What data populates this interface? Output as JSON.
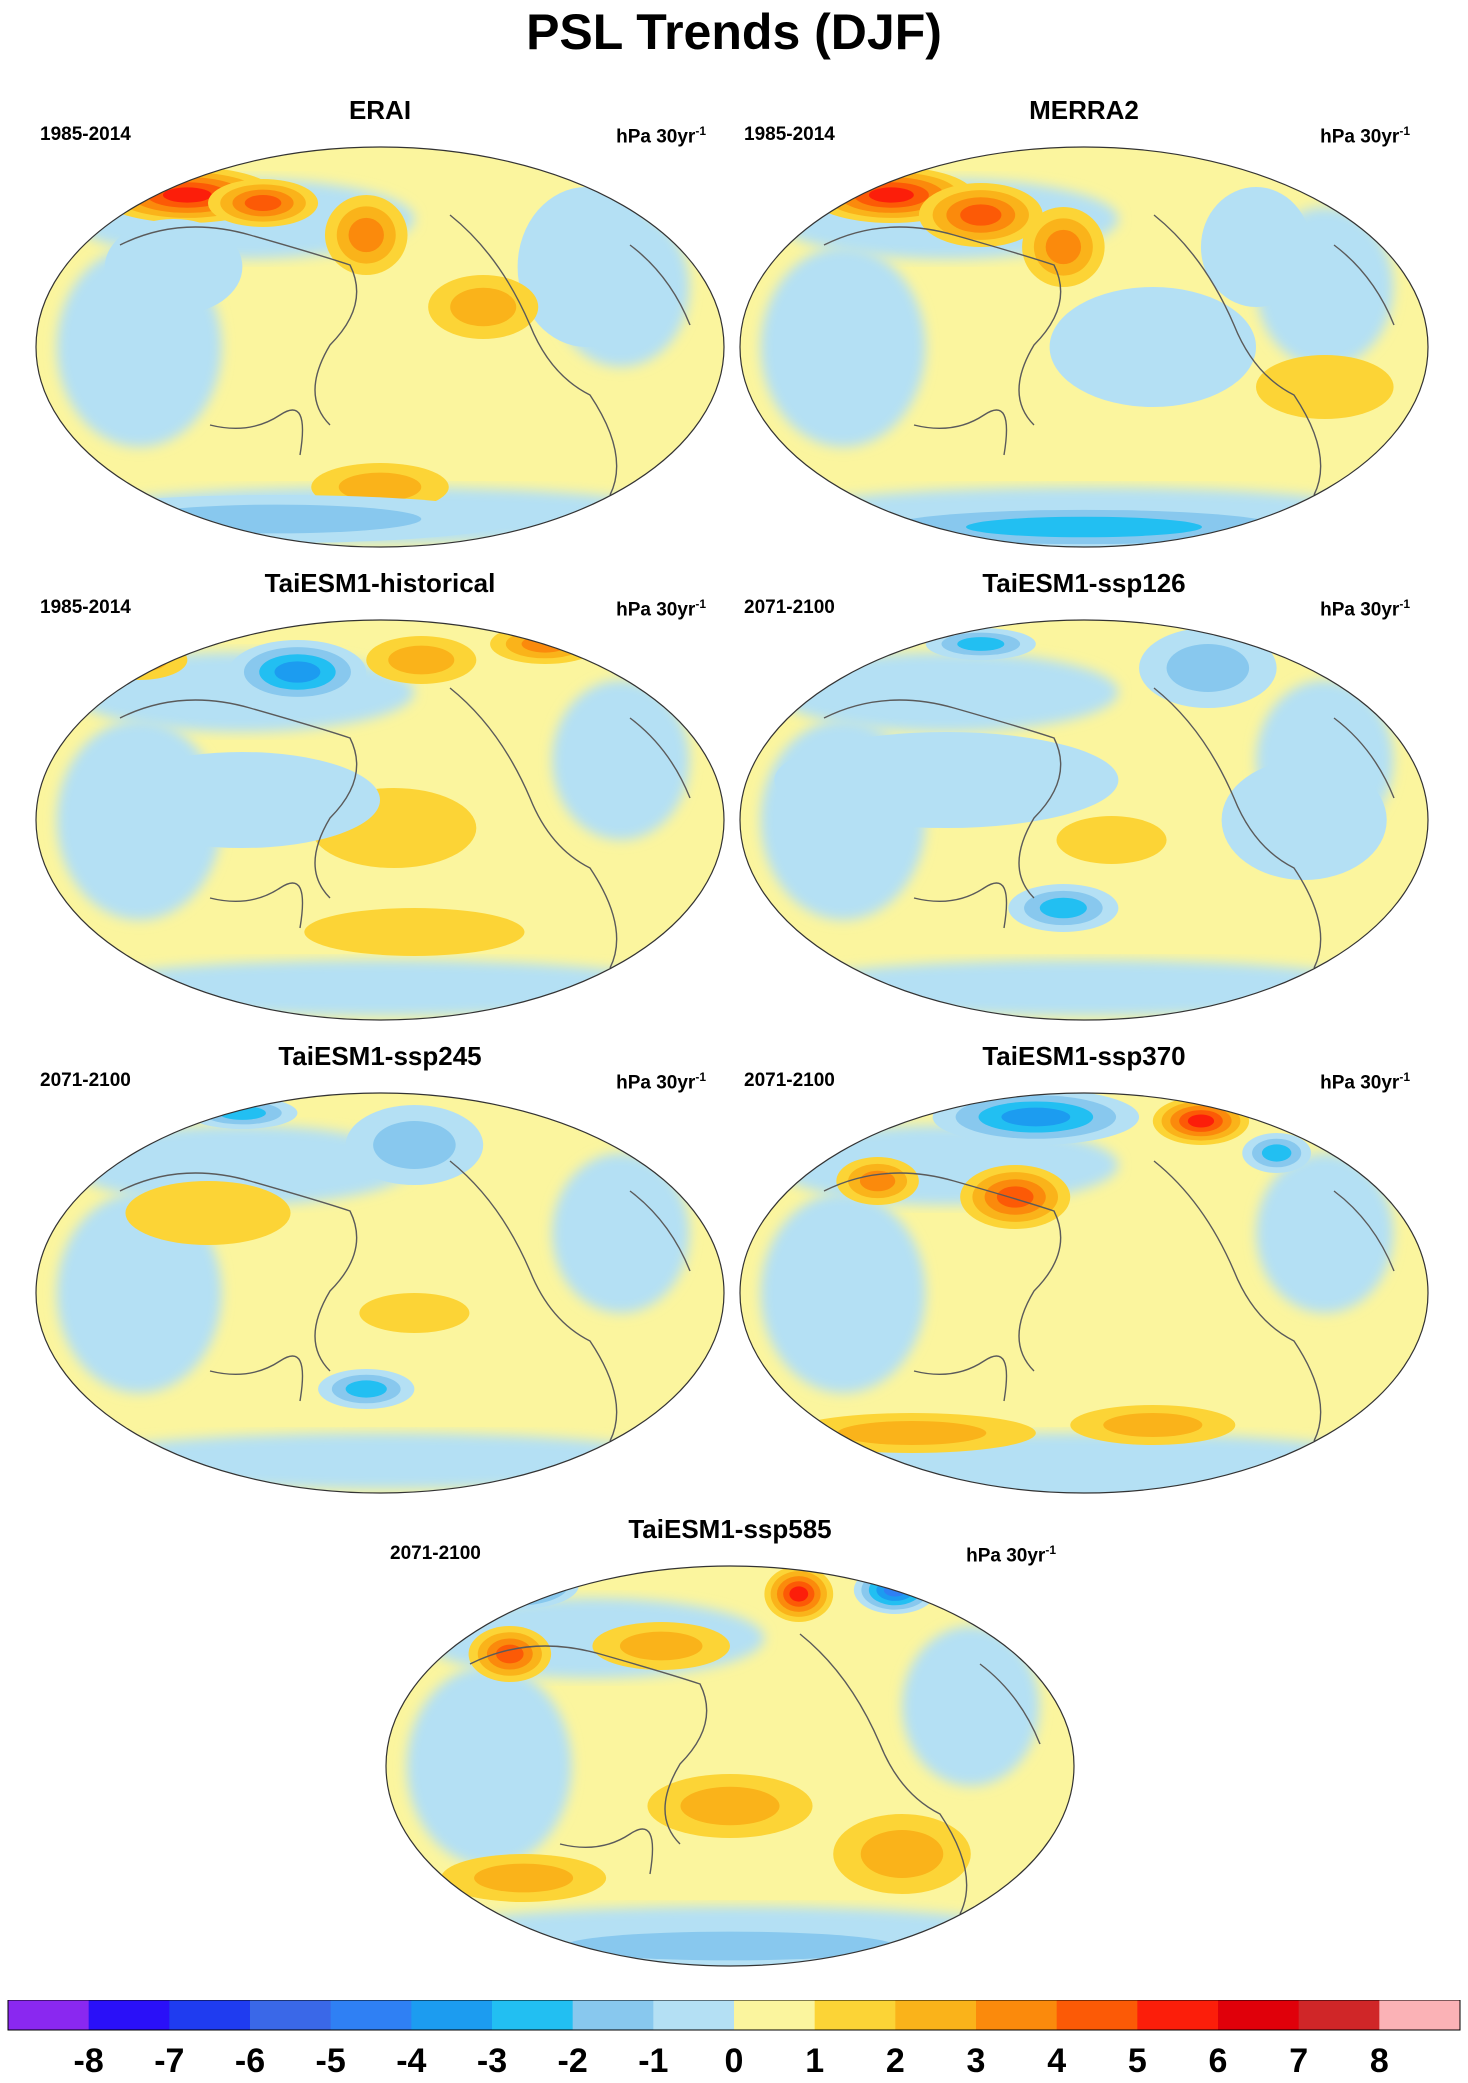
{
  "figure": {
    "title": "PSL Trends (DJF)"
  },
  "panels": [
    {
      "id": "erai",
      "title": "ERAI",
      "period": "1985-2014",
      "units": "hPa 30yr",
      "units_exp": "-1"
    },
    {
      "id": "merra2",
      "title": "MERRA2",
      "period": "1985-2014",
      "units": "hPa 30yr",
      "units_exp": "-1"
    },
    {
      "id": "hist",
      "title": "TaiESM1-historical",
      "period": "1985-2014",
      "units": "hPa 30yr",
      "units_exp": "-1"
    },
    {
      "id": "ssp126",
      "title": "TaiESM1-ssp126",
      "period": "2071-2100",
      "units": "hPa 30yr",
      "units_exp": "-1"
    },
    {
      "id": "ssp245",
      "title": "TaiESM1-ssp245",
      "period": "2071-2100",
      "units": "hPa 30yr",
      "units_exp": "-1"
    },
    {
      "id": "ssp370",
      "title": "TaiESM1-ssp370",
      "period": "2071-2100",
      "units": "hPa 30yr",
      "units_exp": "-1"
    },
    {
      "id": "ssp585",
      "title": "TaiESM1-ssp585",
      "period": "2071-2100",
      "units": "hPa 30yr",
      "units_exp": "-1"
    }
  ],
  "colorbar": {
    "labels": [
      "-8",
      "-7",
      "-6",
      "-5",
      "-4",
      "-3",
      "-2",
      "-1",
      "0",
      "1",
      "2",
      "3",
      "4",
      "5",
      "6",
      "7",
      "8"
    ],
    "colors": [
      "#8a28f0",
      "#2a10f8",
      "#1f3cf0",
      "#3a68e8",
      "#2f80f4",
      "#1c9cf0",
      "#22bff2",
      "#88c8ee",
      "#b4e0f4",
      "#fbf59e",
      "#fcd436",
      "#fab31a",
      "#fb8a0c",
      "#fc5a06",
      "#fc1e0a",
      "#e0000a",
      "#d02628",
      "#fbb2b6"
    ]
  }
}
